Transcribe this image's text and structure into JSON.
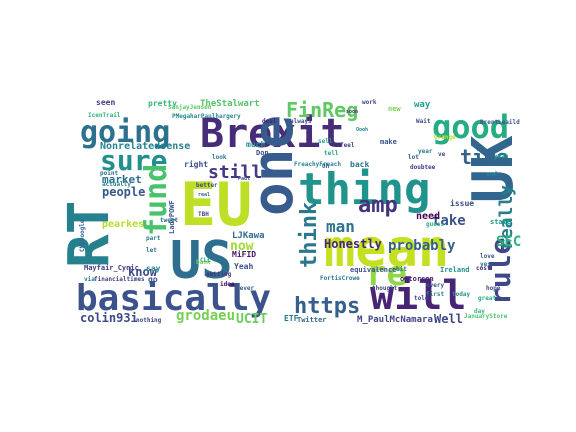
{
  "words": [
    {
      "text": "Brexit",
      "color": "#472c7a"
    },
    {
      "text": "EU",
      "color": "#bddf26"
    },
    {
      "text": "one",
      "color": "#375b8d"
    },
    {
      "text": "US",
      "color": "#2e6e8e"
    },
    {
      "text": "RT",
      "color": "#26818e"
    },
    {
      "text": "mean",
      "color": "#c5e021"
    },
    {
      "text": "UK",
      "color": "#31668e"
    },
    {
      "text": "thing",
      "color": "#20938c"
    },
    {
      "text": "basically",
      "color": "#3b528b"
    },
    {
      "text": "will",
      "color": "#482475"
    },
    {
      "text": "going",
      "color": "#2c728e"
    },
    {
      "text": "good",
      "color": "#25ac82"
    },
    {
      "text": "re",
      "color": "#8fd744"
    },
    {
      "text": "sure",
      "color": "#21908d"
    },
    {
      "text": "fund",
      "color": "#4ac16d"
    },
    {
      "text": "rule",
      "color": "#3f4788"
    },
    {
      "text": "think",
      "color": "#2a788e"
    },
    {
      "text": "https",
      "color": "#355f8d"
    },
    {
      "text": "FinReg",
      "color": "#5ec962"
    },
    {
      "text": "amp",
      "color": "#46337e"
    },
    {
      "text": "time",
      "color": "#33638d"
    },
    {
      "text": "colin93i",
      "color": "#3e4a89"
    },
    {
      "text": "really",
      "color": "#277f8e"
    },
    {
      "text": "still",
      "color": "#443a83"
    },
    {
      "text": "man",
      "color": "#2b758e"
    },
    {
      "text": "grodaeu",
      "color": "#75d054"
    },
    {
      "text": "Honestly",
      "color": "#482576"
    },
    {
      "text": "probably",
      "color": "#34618d"
    },
    {
      "text": "take",
      "color": "#3b518b"
    },
    {
      "text": "SEC",
      "color": "#2db27d"
    },
    {
      "text": "UCIT",
      "color": "#6ccd5a"
    },
    {
      "text": "people",
      "color": "#38598c"
    },
    {
      "text": "market",
      "color": "#2c718e"
    },
    {
      "text": "now",
      "color": "#a2da37"
    },
    {
      "text": "know",
      "color": "#3d4d8a"
    },
    {
      "text": "Well",
      "color": "#404688"
    },
    {
      "text": "Nonrelatedsense",
      "color": "#26828e"
    },
    {
      "text": "need",
      "color": "#440154"
    },
    {
      "text": "pearkes",
      "color": "#b5de2b"
    },
    {
      "text": "M_PaulMcNamara",
      "color": "#414487"
    },
    {
      "text": "LJKawa",
      "color": "#2f6c8e"
    },
    {
      "text": "MiFID",
      "color": "#481769"
    },
    {
      "text": "Yeah",
      "color": "#3a548c"
    },
    {
      "text": "ETF",
      "color": "#2a768e"
    },
    {
      "text": "Twitter",
      "color": "#31688e"
    },
    {
      "text": "issue",
      "color": "#3e4989"
    },
    {
      "text": "much",
      "color": "#21908c"
    },
    {
      "text": "way",
      "color": "#1fa088"
    },
    {
      "text": "pretty",
      "color": "#35b779"
    },
    {
      "text": "TheStalwart",
      "color": "#54c568"
    },
    {
      "text": "seen",
      "color": "#433e85"
    },
    {
      "text": "back",
      "color": "#2c738e"
    },
    {
      "text": "right",
      "color": "#3c4f8a"
    },
    {
      "text": "say",
      "color": "#25838e"
    },
    {
      "text": "go",
      "color": "#3b528b"
    },
    {
      "text": "Ireland",
      "color": "#21918c"
    },
    {
      "text": "equivalence",
      "color": "#3b528b"
    },
    {
      "text": "ottorson",
      "color": "#482878"
    },
    {
      "text": "LadyPOWF",
      "color": "#38588c"
    },
    {
      "text": "FortisCrowe",
      "color": "#287c8e"
    },
    {
      "text": "SanjayJensen",
      "color": "#5ac864"
    },
    {
      "text": "Mayfair_Cynic",
      "color": "#453781"
    },
    {
      "text": "via",
      "color": "#2a788e"
    },
    {
      "text": "financialtimes",
      "color": "#414487"
    },
    {
      "text": "CMbDoogle",
      "color": "#31688e"
    },
    {
      "text": "Don",
      "color": "#3e4a89"
    },
    {
      "text": "bit",
      "color": "#2d708e"
    },
    {
      "text": "sell",
      "color": "#22a785"
    },
    {
      "text": "first",
      "color": "#26828e"
    },
    {
      "text": "every",
      "color": "#3b528b"
    },
    {
      "text": "tell",
      "color": "#20a486"
    },
    {
      "text": "state",
      "color": "#1f9e89"
    },
    {
      "text": "guess",
      "color": "#29af7f"
    },
    {
      "text": "bank",
      "color": "#7ad151"
    },
    {
      "text": "deal",
      "color": "#482173"
    },
    {
      "text": "always",
      "color": "#3e4c8a"
    },
    {
      "text": "PMegaharPaulhargery",
      "color": "#23898e"
    },
    {
      "text": "IcenTrail",
      "color": "#2fb47c"
    },
    {
      "text": "idea",
      "color": "#440154"
    },
    {
      "text": "getting",
      "color": "#46327e"
    },
    {
      "text": "nothing",
      "color": "#404688"
    },
    {
      "text": "point",
      "color": "#2e6f8e"
    },
    {
      "text": "actually",
      "color": "#25858e"
    },
    {
      "text": "lot",
      "color": "#3a538b"
    },
    {
      "text": "ve",
      "color": "#3e4a89"
    },
    {
      "text": "look",
      "color": "#2a778e"
    },
    {
      "text": "feel",
      "color": "#433d84"
    },
    {
      "text": "thought",
      "color": "#3f4889"
    },
    {
      "text": "today",
      "color": "#21918c"
    },
    {
      "text": "JanuaryStore",
      "color": "#4ec36b"
    },
    {
      "text": "love",
      "color": "#38598c"
    },
    {
      "text": "yes",
      "color": "#2d708e"
    },
    {
      "text": "doubtee",
      "color": "#443983"
    },
    {
      "text": "Orange",
      "color": "#b8de29"
    },
    {
      "text": "FreachyFreach",
      "color": "#26828e"
    },
    {
      "text": "better",
      "color": "#3d4e8a"
    },
    {
      "text": "tweet",
      "color": "#2c718e"
    },
    {
      "text": "TBH",
      "color": "#404588"
    },
    {
      "text": "CLL",
      "color": "#22a884"
    },
    {
      "text": "part",
      "color": "#287d8e"
    },
    {
      "text": "let",
      "color": "#2b748e"
    },
    {
      "text": "BrentLeaild",
      "color": "#3b528b"
    },
    {
      "text": "hope",
      "color": "#3e4989"
    },
    {
      "text": "end",
      "color": "#26828e"
    },
    {
      "text": "make",
      "color": "#3b528b"
    },
    {
      "text": "cost",
      "color": "#482878"
    },
    {
      "text": "yeah",
      "color": "#1fa188"
    },
    {
      "text": "work",
      "color": "#3e4a89"
    },
    {
      "text": "year",
      "color": "#2a788e"
    },
    {
      "text": "never",
      "color": "#355f8d"
    },
    {
      "text": "soon",
      "color": "#482475"
    },
    {
      "text": "new",
      "color": "#7ad151"
    },
    {
      "text": "real",
      "color": "#31688e"
    },
    {
      "text": "Paul",
      "color": "#3b528b"
    },
    {
      "text": "Oh",
      "color": "#38598c"
    },
    {
      "text": "Wait",
      "color": "#3e4a89"
    },
    {
      "text": "told",
      "color": "#404588"
    },
    {
      "text": "Oooh",
      "color": "#26828e"
    },
    {
      "text": "day",
      "color": "#35b779"
    },
    {
      "text": "great",
      "color": "#22a884"
    }
  ]
}
